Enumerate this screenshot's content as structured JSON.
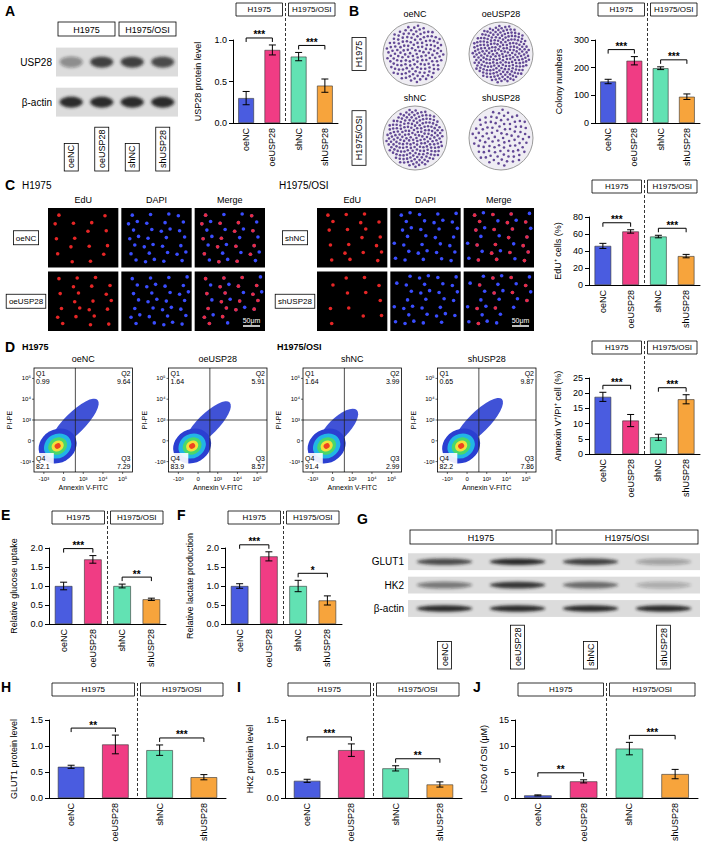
{
  "letters": [
    "A",
    "B",
    "C",
    "D",
    "E",
    "F",
    "G",
    "H",
    "I",
    "J"
  ],
  "blot_A": {
    "groups": [
      {
        "name": "H1975",
        "lanes": [
          "oeNC",
          "oeUSP28"
        ]
      },
      {
        "name": "H1975/OSI",
        "lanes": [
          "shNC",
          "shUSP28"
        ]
      }
    ],
    "lanes": [
      "oeNC",
      "oeUSP28",
      "shNC",
      "shUSP28"
    ],
    "rows": [
      {
        "name": "USP28",
        "intensity": [
          0.4,
          0.8,
          0.8,
          0.75
        ]
      },
      {
        "name": "β-actin",
        "intensity": [
          0.9,
          0.9,
          0.9,
          0.9
        ]
      }
    ]
  },
  "edu": {
    "channels": [
      "EdU",
      "DAPI",
      "Merge"
    ],
    "scale_bar": "50μm"
  },
  "flow": {
    "x_label": "Annexin V-FITC",
    "y_label": "PI-PE",
    "ticks": [
      "-10³",
      "0",
      "10³",
      "10⁴",
      "10⁵"
    ],
    "groups": [
      {
        "name": "H1975",
        "plots": [
          {
            "title": "oeNC",
            "quadrants": [
              {
                "name": "Q1",
                "value": 0.99
              },
              {
                "name": "Q2",
                "value": 9.64
              },
              {
                "name": "Q3",
                "value": 7.29
              },
              {
                "name": "Q4",
                "value": 82.1
              }
            ]
          },
          {
            "title": "oeUSP28",
            "quadrants": [
              {
                "name": "Q1",
                "value": 1.64
              },
              {
                "name": "Q2",
                "value": 5.91
              },
              {
                "name": "Q3",
                "value": 8.57
              },
              {
                "name": "Q4",
                "value": 83.9
              }
            ]
          }
        ]
      },
      {
        "name": "H1975/OSI",
        "plots": [
          {
            "title": "shNC",
            "quadrants": [
              {
                "name": "Q1",
                "value": 1.64
              },
              {
                "name": "Q2",
                "value": 3.99
              },
              {
                "name": "Q3",
                "value": 2.99
              },
              {
                "name": "Q4",
                "value": 91.4
              }
            ]
          },
          {
            "title": "shUSP28",
            "quadrants": [
              {
                "name": "Q1",
                "value": 0.65
              },
              {
                "name": "Q2",
                "value": 9.87
              },
              {
                "name": "Q3",
                "value": 7.86
              },
              {
                "name": "Q4",
                "value": 82.2
              }
            ]
          }
        ]
      }
    ]
  },
  "blot_G": {
    "groups": [
      {
        "name": "H1975",
        "lanes": [
          "oeNC",
          "oeUSP28"
        ]
      },
      {
        "name": "H1975/OSI",
        "lanes": [
          "shNC",
          "shUSP28"
        ]
      }
    ],
    "lanes": [
      "oeNC",
      "oeUSP28",
      "shNC",
      "shUSP28"
    ],
    "rows": [
      {
        "name": "GLUT1",
        "intensity": [
          0.75,
          0.9,
          0.8,
          0.3
        ]
      },
      {
        "name": "HK2",
        "intensity": [
          0.5,
          0.85,
          0.6,
          0.25
        ]
      },
      {
        "name": "β-actin",
        "intensity": [
          0.9,
          0.9,
          0.9,
          0.9
        ]
      }
    ]
  },
  "chart_data": [
    {
      "type": "bar",
      "ylabel": "USP28 protein level",
      "categories": [
        "oeNC",
        "oeUSP28",
        "shNC",
        "shUSP28"
      ],
      "values": [
        0.3,
        0.88,
        0.8,
        0.45
      ],
      "errors": [
        0.08,
        0.06,
        0.05,
        0.08
      ],
      "colors": [
        "#4a5ce0",
        "#f03c84",
        "#62e2b3",
        "#f7a43c"
      ],
      "ylim": [
        0,
        1
      ],
      "yticks": [
        {
          "value": 0,
          "label": "0.0"
        },
        {
          "value": 0.5,
          "label": "0.5"
        },
        {
          "value": 1,
          "label": "1.0"
        }
      ],
      "grid": false,
      "groups": [
        {
          "name": "H1975",
          "categories": [
            "oeNC",
            "oeUSP28"
          ]
        },
        {
          "name": "H1975/OSI",
          "categories": [
            "shNC",
            "shUSP28"
          ]
        }
      ],
      "annotations": [
        {
          "from": "oeNC",
          "to": "oeUSP28",
          "text": "***"
        },
        {
          "from": "shNC",
          "to": "shUSP28",
          "text": "***"
        }
      ]
    },
    {
      "type": "bar",
      "ylabel": "Colony numbers",
      "categories": [
        "oeNC",
        "oeUSP28",
        "shNC",
        "shUSP28"
      ],
      "values": [
        150,
        225,
        198,
        95
      ],
      "errors": [
        8,
        15,
        5,
        10
      ],
      "colors": [
        "#4a5ce0",
        "#f03c84",
        "#62e2b3",
        "#f7a43c"
      ],
      "ylim": [
        0,
        300
      ],
      "yticks": [
        0,
        100,
        200,
        300
      ],
      "grid": false,
      "groups": [
        {
          "name": "H1975",
          "categories": [
            "oeNC",
            "oeUSP28"
          ]
        },
        {
          "name": "H1975/OSI",
          "categories": [
            "shNC",
            "shUSP28"
          ]
        }
      ],
      "annotations": [
        {
          "from": "oeNC",
          "to": "oeUSP28",
          "text": "***"
        },
        {
          "from": "shNC",
          "to": "shUSP28",
          "text": "***"
        }
      ]
    },
    {
      "type": "bar",
      "ylabel": "EdU⁺ cells (%)",
      "categories": [
        "oeNC",
        "oeUSP28",
        "shNC",
        "shUSP28"
      ],
      "values": [
        46,
        63,
        57,
        34
      ],
      "errors": [
        3,
        2,
        1.5,
        2
      ],
      "colors": [
        "#4a5ce0",
        "#f03c84",
        "#62e2b3",
        "#f7a43c"
      ],
      "ylim": [
        0,
        80
      ],
      "yticks": [
        0,
        20,
        40,
        60,
        80
      ],
      "grid": false,
      "groups": [
        {
          "name": "H1975",
          "categories": [
            "oeNC",
            "oeUSP28"
          ]
        },
        {
          "name": "H1975/OSI",
          "categories": [
            "shNC",
            "shUSP28"
          ]
        }
      ],
      "annotations": [
        {
          "from": "oeNC",
          "to": "oeUSP28",
          "text": "***"
        },
        {
          "from": "shNC",
          "to": "shUSP28",
          "text": "***"
        }
      ]
    },
    {
      "type": "bar",
      "ylabel": "Annexin V⁺/PI⁺ cell (%)",
      "categories": [
        "oeNC",
        "oeUSP28",
        "shNC",
        "shUSP28"
      ],
      "values": [
        18.8,
        11,
        5.5,
        18
      ],
      "errors": [
        1.5,
        2,
        1,
        1.5
      ],
      "colors": [
        "#4a5ce0",
        "#f03c84",
        "#62e2b3",
        "#f7a43c"
      ],
      "ylim": [
        0,
        25
      ],
      "yticks": [
        0,
        5,
        10,
        15,
        20,
        25
      ],
      "grid": false,
      "groups": [
        {
          "name": "H1975",
          "categories": [
            "oeNC",
            "oeUSP28"
          ]
        },
        {
          "name": "H1975/OSI",
          "categories": [
            "shNC",
            "shUSP28"
          ]
        }
      ],
      "annotations": [
        {
          "from": "oeNC",
          "to": "oeUSP28",
          "text": "***"
        },
        {
          "from": "shNC",
          "to": "shUSP28",
          "text": "***"
        }
      ]
    },
    {
      "type": "bar",
      "ylabel": "Relative glucose uptake",
      "categories": [
        "oeNC",
        "oeUSP28",
        "shNC",
        "shUSP28"
      ],
      "values": [
        1,
        1.7,
        1,
        0.65
      ],
      "errors": [
        0.1,
        0.1,
        0.05,
        0.03
      ],
      "colors": [
        "#4a5ce0",
        "#f03c84",
        "#62e2b3",
        "#f7a43c"
      ],
      "ylim": [
        0,
        2
      ],
      "yticks": [
        {
          "value": 0,
          "label": "0.0"
        },
        {
          "value": 0.5,
          "label": "0.5"
        },
        {
          "value": 1,
          "label": "1.0"
        },
        {
          "value": 1.5,
          "label": "1.5"
        },
        {
          "value": 2,
          "label": "2.0"
        }
      ],
      "grid": false,
      "groups": [
        {
          "name": "H1975",
          "categories": [
            "oeNC",
            "oeUSP28"
          ]
        },
        {
          "name": "H1975/OSI",
          "categories": [
            "shNC",
            "shUSP28"
          ]
        }
      ],
      "annotations": [
        {
          "from": "oeNC",
          "to": "oeUSP28",
          "text": "***"
        },
        {
          "from": "shNC",
          "to": "shUSP28",
          "text": "**"
        }
      ]
    },
    {
      "type": "bar",
      "ylabel": "Relative lactate production",
      "categories": [
        "oeNC",
        "oeUSP28",
        "shNC",
        "shUSP28"
      ],
      "values": [
        1,
        1.78,
        1,
        0.62
      ],
      "errors": [
        0.06,
        0.12,
        0.15,
        0.12
      ],
      "colors": [
        "#4a5ce0",
        "#f03c84",
        "#62e2b3",
        "#f7a43c"
      ],
      "ylim": [
        0,
        2
      ],
      "yticks": [
        {
          "value": 0,
          "label": "0.0"
        },
        {
          "value": 0.5,
          "label": "0.5"
        },
        {
          "value": 1,
          "label": "1.0"
        },
        {
          "value": 1.5,
          "label": "1.5"
        },
        {
          "value": 2,
          "label": "2.0"
        }
      ],
      "grid": false,
      "groups": [
        {
          "name": "H1975",
          "categories": [
            "oeNC",
            "oeUSP28"
          ]
        },
        {
          "name": "H1975/OSI",
          "categories": [
            "shNC",
            "shUSP28"
          ]
        }
      ],
      "annotations": [
        {
          "from": "oeNC",
          "to": "oeUSP28",
          "text": "***"
        },
        {
          "from": "shNC",
          "to": "shUSP28",
          "text": "*"
        }
      ]
    },
    {
      "type": "bar",
      "ylabel": "GLUT1 protein level",
      "categories": [
        "oeNC",
        "oeUSP28",
        "shNC",
        "shUSP28"
      ],
      "values": [
        0.6,
        1.03,
        0.92,
        0.4
      ],
      "errors": [
        0.03,
        0.18,
        0.1,
        0.05
      ],
      "colors": [
        "#4a5ce0",
        "#f03c84",
        "#62e2b3",
        "#f7a43c"
      ],
      "ylim": [
        0,
        1.5
      ],
      "yticks": [
        {
          "value": 0,
          "label": "0.0"
        },
        {
          "value": 0.5,
          "label": "0.5"
        },
        {
          "value": 1,
          "label": "1.0"
        },
        {
          "value": 1.5,
          "label": "1.5"
        }
      ],
      "grid": false,
      "groups": [
        {
          "name": "H1975",
          "categories": [
            "oeNC",
            "oeUSP28"
          ]
        },
        {
          "name": "H1975/OSI",
          "categories": [
            "shNC",
            "shUSP28"
          ]
        }
      ],
      "annotations": [
        {
          "from": "oeNC",
          "to": "oeUSP28",
          "text": "**"
        },
        {
          "from": "shNC",
          "to": "shUSP28",
          "text": "***"
        }
      ]
    },
    {
      "type": "bar",
      "ylabel": "HK2 protein level",
      "categories": [
        "oeNC",
        "oeUSP28",
        "shNC",
        "shUSP28"
      ],
      "values": [
        0.33,
        0.92,
        0.57,
        0.26
      ],
      "errors": [
        0.03,
        0.12,
        0.05,
        0.05
      ],
      "colors": [
        "#4a5ce0",
        "#f03c84",
        "#62e2b3",
        "#f7a43c"
      ],
      "ylim": [
        0,
        1.5
      ],
      "yticks": [
        {
          "value": 0,
          "label": "0.0"
        },
        {
          "value": 0.5,
          "label": "0.5"
        },
        {
          "value": 1,
          "label": "1.0"
        },
        {
          "value": 1.5,
          "label": "1.5"
        }
      ],
      "grid": false,
      "groups": [
        {
          "name": "H1975",
          "categories": [
            "oeNC",
            "oeUSP28"
          ]
        },
        {
          "name": "H1975/OSI",
          "categories": [
            "shNC",
            "shUSP28"
          ]
        }
      ],
      "annotations": [
        {
          "from": "oeNC",
          "to": "oeUSP28",
          "text": "***"
        },
        {
          "from": "shNC",
          "to": "shUSP28",
          "text": "**"
        }
      ]
    },
    {
      "type": "bar",
      "ylabel": "IC50 of OSI (μM)",
      "categories": [
        "oeNC",
        "oeUSP28",
        "shNC",
        "shUSP28"
      ],
      "values": [
        0.5,
        3.2,
        9.5,
        4.6
      ],
      "errors": [
        0.1,
        0.3,
        1.2,
        0.9
      ],
      "colors": [
        "#4a5ce0",
        "#f03c84",
        "#62e2b3",
        "#f7a43c"
      ],
      "ylim": [
        0,
        15
      ],
      "yticks": [
        0,
        5,
        10,
        15
      ],
      "grid": false,
      "groups": [
        {
          "name": "H1975",
          "categories": [
            "oeNC",
            "oeUSP28"
          ]
        },
        {
          "name": "H1975/OSI",
          "categories": [
            "shNC",
            "shUSP28"
          ]
        }
      ],
      "annotations": [
        {
          "from": "oeNC",
          "to": "oeUSP28",
          "text": "**"
        },
        {
          "from": "shNC",
          "to": "shUSP28",
          "text": "***"
        }
      ]
    }
  ]
}
